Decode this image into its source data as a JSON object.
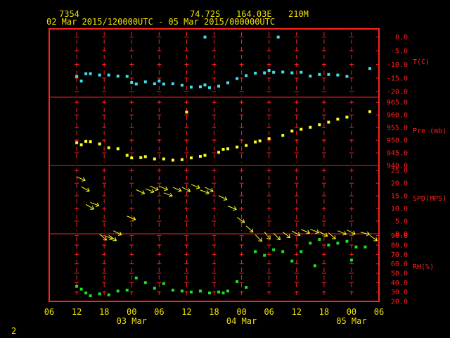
{
  "header": {
    "station": "7354",
    "lat": "74.72S",
    "lon": "164.03E",
    "elev": "210M",
    "period": "02 Mar 2015/120000UTC - 05 Mar 2015/000000UTC",
    "page_number": "2"
  },
  "colors": {
    "background": "#000000",
    "frame": "#ff2020",
    "axis_text": "#ff2020",
    "header_text": "#f0e000",
    "temperature": "#40e0f0",
    "pressure": "#ffff20",
    "wind": "#ffff20",
    "humidity": "#20e020"
  },
  "chart_data": {
    "type": "scatter",
    "x_axis": {
      "units": "hours since 02 Mar 2015 12UTC",
      "range": [
        -6,
        66
      ],
      "tick_labels": [
        "06",
        "12",
        "18",
        "00",
        "06",
        "12",
        "18",
        "00",
        "06",
        "12",
        "18",
        "00",
        "06"
      ],
      "day_labels": [
        {
          "text": "03 Mar",
          "at": 12
        },
        {
          "text": "04 Mar",
          "at": 36
        },
        {
          "text": "05 Mar",
          "at": 60
        }
      ]
    },
    "panels": [
      {
        "id": "temperature",
        "label": "T(C)",
        "ticks": [
          "0.0",
          "-5.0",
          "-10.0",
          "-15.0",
          "-20.0"
        ],
        "range": [
          -22,
          3
        ],
        "x": [
          0,
          1,
          2,
          3,
          5,
          7,
          9,
          11,
          12,
          13,
          15,
          17,
          18,
          19,
          21,
          23,
          25,
          27,
          28,
          29,
          31,
          33,
          35,
          37,
          39,
          41,
          42,
          43,
          45,
          47,
          49,
          51,
          53,
          55,
          57,
          59
        ],
        "y": [
          -14.4,
          -16.1,
          -13.4,
          -13.4,
          -13.9,
          -13.9,
          -14.3,
          -14.4,
          -16.6,
          -17.2,
          -16.4,
          -17.1,
          -16.1,
          -17.2,
          -17.1,
          -17.6,
          -18.3,
          -18.2,
          -17.5,
          -18.5,
          -18,
          -16.7,
          -15.2,
          -14.1,
          -13.2,
          -13.1,
          -12.2,
          -12.9,
          -12.8,
          -13.1,
          -12.9,
          -14.3,
          -13.7,
          -13.7,
          -13.9,
          -14.4
        ],
        "outliers": {
          "x": [
            28,
            44,
            64
          ],
          "y": [
            0,
            0,
            -11.5
          ]
        }
      },
      {
        "id": "pressure",
        "label": "Pre (mb)",
        "ticks": [
          "965.0",
          "960.0",
          "955.0",
          "950.0",
          "945.0",
          "940.0"
        ],
        "range": [
          940,
          967
        ],
        "x": [
          0,
          1,
          2,
          3,
          5,
          7,
          9,
          11,
          12,
          14,
          15,
          17,
          19,
          21,
          23,
          25,
          27,
          28,
          31,
          32,
          33,
          35,
          37,
          39,
          40,
          42,
          45,
          47,
          49,
          51,
          53,
          55,
          57,
          59
        ],
        "y": [
          949,
          948.2,
          949.5,
          949.4,
          948.5,
          947,
          946.6,
          944,
          943,
          943.1,
          943.5,
          942.6,
          942.6,
          942.1,
          942.3,
          943,
          943.6,
          944,
          945.2,
          946.4,
          946.6,
          947.3,
          947.9,
          949.3,
          949.7,
          950.6,
          951.9,
          953.6,
          954.3,
          955.1,
          956.1,
          957.1,
          958.3,
          959.1
        ],
        "outliers": {
          "x": [
            24,
            64
          ],
          "y": [
            961.1,
            961.3
          ]
        }
      },
      {
        "id": "wind",
        "label": "SPD(MPS)",
        "ticks": [
          "25.0",
          "20.0",
          "15.0",
          "10.0",
          "5.0",
          "0.0"
        ],
        "range": [
          0,
          27
        ],
        "x": [
          0,
          1,
          2,
          3,
          5,
          6,
          7,
          8,
          11,
          13,
          15,
          16,
          18,
          19,
          21,
          23,
          25,
          27,
          28,
          31,
          33,
          35,
          37,
          39,
          41,
          43,
          45,
          47,
          49,
          51,
          53,
          55,
          57,
          59,
          62,
          64
        ],
        "y": [
          22.5,
          18.6,
          11.6,
          12.4,
          -0.1,
          -0.6,
          -0.6,
          1.2,
          7,
          17.4,
          17.8,
          18.9,
          18.8,
          16.2,
          18.4,
          18.4,
          19.5,
          17.3,
          18.4,
          15.1,
          11,
          6.5,
          3.1,
          -0.4,
          0.7,
          0.2,
          0.7,
          1.1,
          1.7,
          1.8,
          0.8,
          0.4,
          1.2,
          1.5,
          0.6,
          -0.6
        ],
        "u": [
          -1.2,
          -1.1,
          -1.2,
          -1.3,
          -0.9,
          -1.1,
          -1,
          -1.2,
          -1.2,
          -1.3,
          -1.3,
          -1.3,
          -1.2,
          -1.3,
          -1.3,
          -1.2,
          -1.2,
          -1.3,
          -1.2,
          -1.2,
          -1.2,
          -1,
          -0.9,
          -0.8,
          -0.7,
          -0.8,
          -0.9,
          -1.1,
          -1.2,
          -1.3,
          -1.1,
          -0.9,
          -1.2,
          -1.2,
          -1.3,
          -0.8
        ],
        "v": [
          -0.5,
          -0.6,
          -0.7,
          -0.5,
          -0.8,
          -0.5,
          -0.7,
          -0.6,
          -0.5,
          -0.6,
          -0.5,
          -0.6,
          -0.5,
          -0.5,
          -0.6,
          -0.6,
          -0.5,
          -0.5,
          -0.6,
          -0.6,
          -0.5,
          -0.7,
          -0.8,
          -0.8,
          -0.9,
          -0.8,
          -0.7,
          -0.6,
          -0.5,
          -0.5,
          -0.6,
          -0.8,
          -0.5,
          -0.6,
          -0.3,
          -0.6
        ]
      },
      {
        "id": "humidity",
        "label": "RH(%)",
        "ticks": [
          "90.0",
          "80.0",
          "70.0",
          "60.0",
          "50.0",
          "40.0",
          "30.0",
          "20.0"
        ],
        "range": [
          20,
          92
        ],
        "x": [
          0,
          1,
          2,
          3,
          5,
          7,
          9,
          11,
          13,
          15,
          17,
          19,
          21,
          23,
          25,
          27,
          29,
          31,
          32,
          33,
          35,
          37,
          39,
          41,
          43,
          45,
          47,
          49,
          51,
          53,
          55,
          57,
          59,
          61,
          63
        ],
        "y": [
          36,
          33,
          29,
          26,
          28,
          27,
          31,
          32,
          45,
          40,
          34,
          39,
          32,
          31,
          30,
          31,
          29,
          30,
          29,
          31,
          41,
          35,
          73,
          69,
          75,
          73,
          63,
          73,
          82,
          86,
          80,
          82,
          84,
          78,
          78
        ],
        "outliers": {
          "x": [
            52,
            60
          ],
          "y": [
            58,
            64
          ]
        }
      }
    ]
  }
}
